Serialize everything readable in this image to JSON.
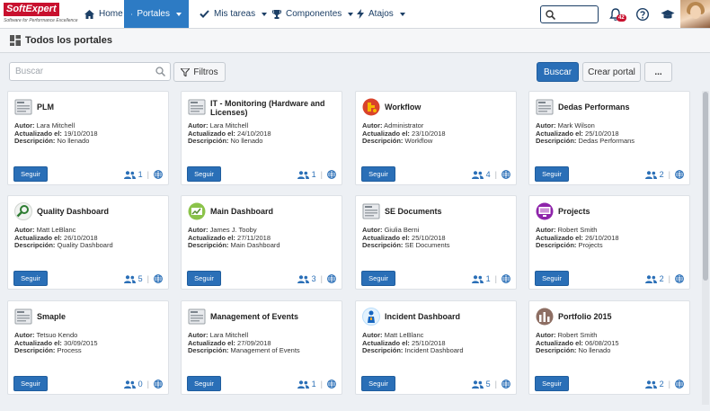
{
  "nav": {
    "logo": "SoftExpert",
    "logo_tagline": "Software for Performance Excellence",
    "items": [
      {
        "label": "Home",
        "icon": "home-icon"
      },
      {
        "label": "Portales",
        "icon": "portal-icon",
        "active": true
      },
      {
        "label": "Mis tareas",
        "icon": "check-icon"
      },
      {
        "label": "Componentes",
        "icon": "trophy-icon"
      },
      {
        "label": "Atajos",
        "icon": "bolt-icon"
      }
    ],
    "notification_count": "42"
  },
  "page": {
    "title": "Todos los portales"
  },
  "toolbar": {
    "search_placeholder": "Buscar",
    "filters_label": "Filtros",
    "search_button": "Buscar",
    "create_button": "Crear portal",
    "more_button": "..."
  },
  "labels": {
    "author": "Autor:",
    "updated": "Actualizado el:",
    "description": "Descripción:",
    "follow": "Seguir"
  },
  "portals": [
    {
      "title": "PLM",
      "author": "Lara Mitchell",
      "updated": "19/10/2018",
      "description": "No llenado",
      "followers": "1",
      "icon": "document-icon"
    },
    {
      "title": "IT - Monitoring (Hardware and Licenses)",
      "author": "Lara Mitchell",
      "updated": "24/10/2018",
      "description": "No llenado",
      "followers": "1",
      "icon": "document-icon"
    },
    {
      "title": "Workflow",
      "author": "Administrator",
      "updated": "23/10/2018",
      "description": "Workflow",
      "followers": "4",
      "icon": "workflow-icon"
    },
    {
      "title": "Dedas Performans",
      "author": "Mark Wilson",
      "updated": "25/10/2018",
      "description": "Dedas Performans",
      "followers": "2",
      "icon": "document-icon"
    },
    {
      "title": "Quality Dashboard",
      "author": "Matt LeBlanc",
      "updated": "26/10/2018",
      "description": "Quality Dashboard",
      "followers": "5",
      "icon": "magnifier-icon"
    },
    {
      "title": "Main Dashboard",
      "author": "James J. Tooby",
      "updated": "27/11/2018",
      "description": "Main Dashboard",
      "followers": "3",
      "icon": "dashboard-icon"
    },
    {
      "title": "SE Documents",
      "author": "Giulia Berni",
      "updated": "25/10/2018",
      "description": "SE Documents",
      "followers": "1",
      "icon": "document-icon"
    },
    {
      "title": "Projects",
      "author": "Robert Smith",
      "updated": "26/10/2018",
      "description": "Projects",
      "followers": "2",
      "icon": "monitor-icon"
    },
    {
      "title": "Smaple",
      "author": "Tetsuo Kendo",
      "updated": "30/09/2015",
      "description": "Process",
      "followers": "0",
      "icon": "document-icon"
    },
    {
      "title": "Management of Events",
      "author": "Lara Mitchell",
      "updated": "27/09/2018",
      "description": "Management of Events",
      "followers": "1",
      "icon": "document-icon"
    },
    {
      "title": "Incident Dashboard",
      "author": "Matt LeBlanc",
      "updated": "25/10/2018",
      "description": "Incident Dashboard",
      "followers": "5",
      "icon": "incident-icon"
    },
    {
      "title": "Portfolio 2015",
      "author": "Robert Smith",
      "updated": "06/08/2015",
      "description": "No llenado",
      "followers": "2",
      "icon": "portfolio-icon"
    }
  ],
  "colors": {
    "primary": "#2a6fb7",
    "nav_active": "#2d7bc4",
    "brand": "#c8102e"
  }
}
